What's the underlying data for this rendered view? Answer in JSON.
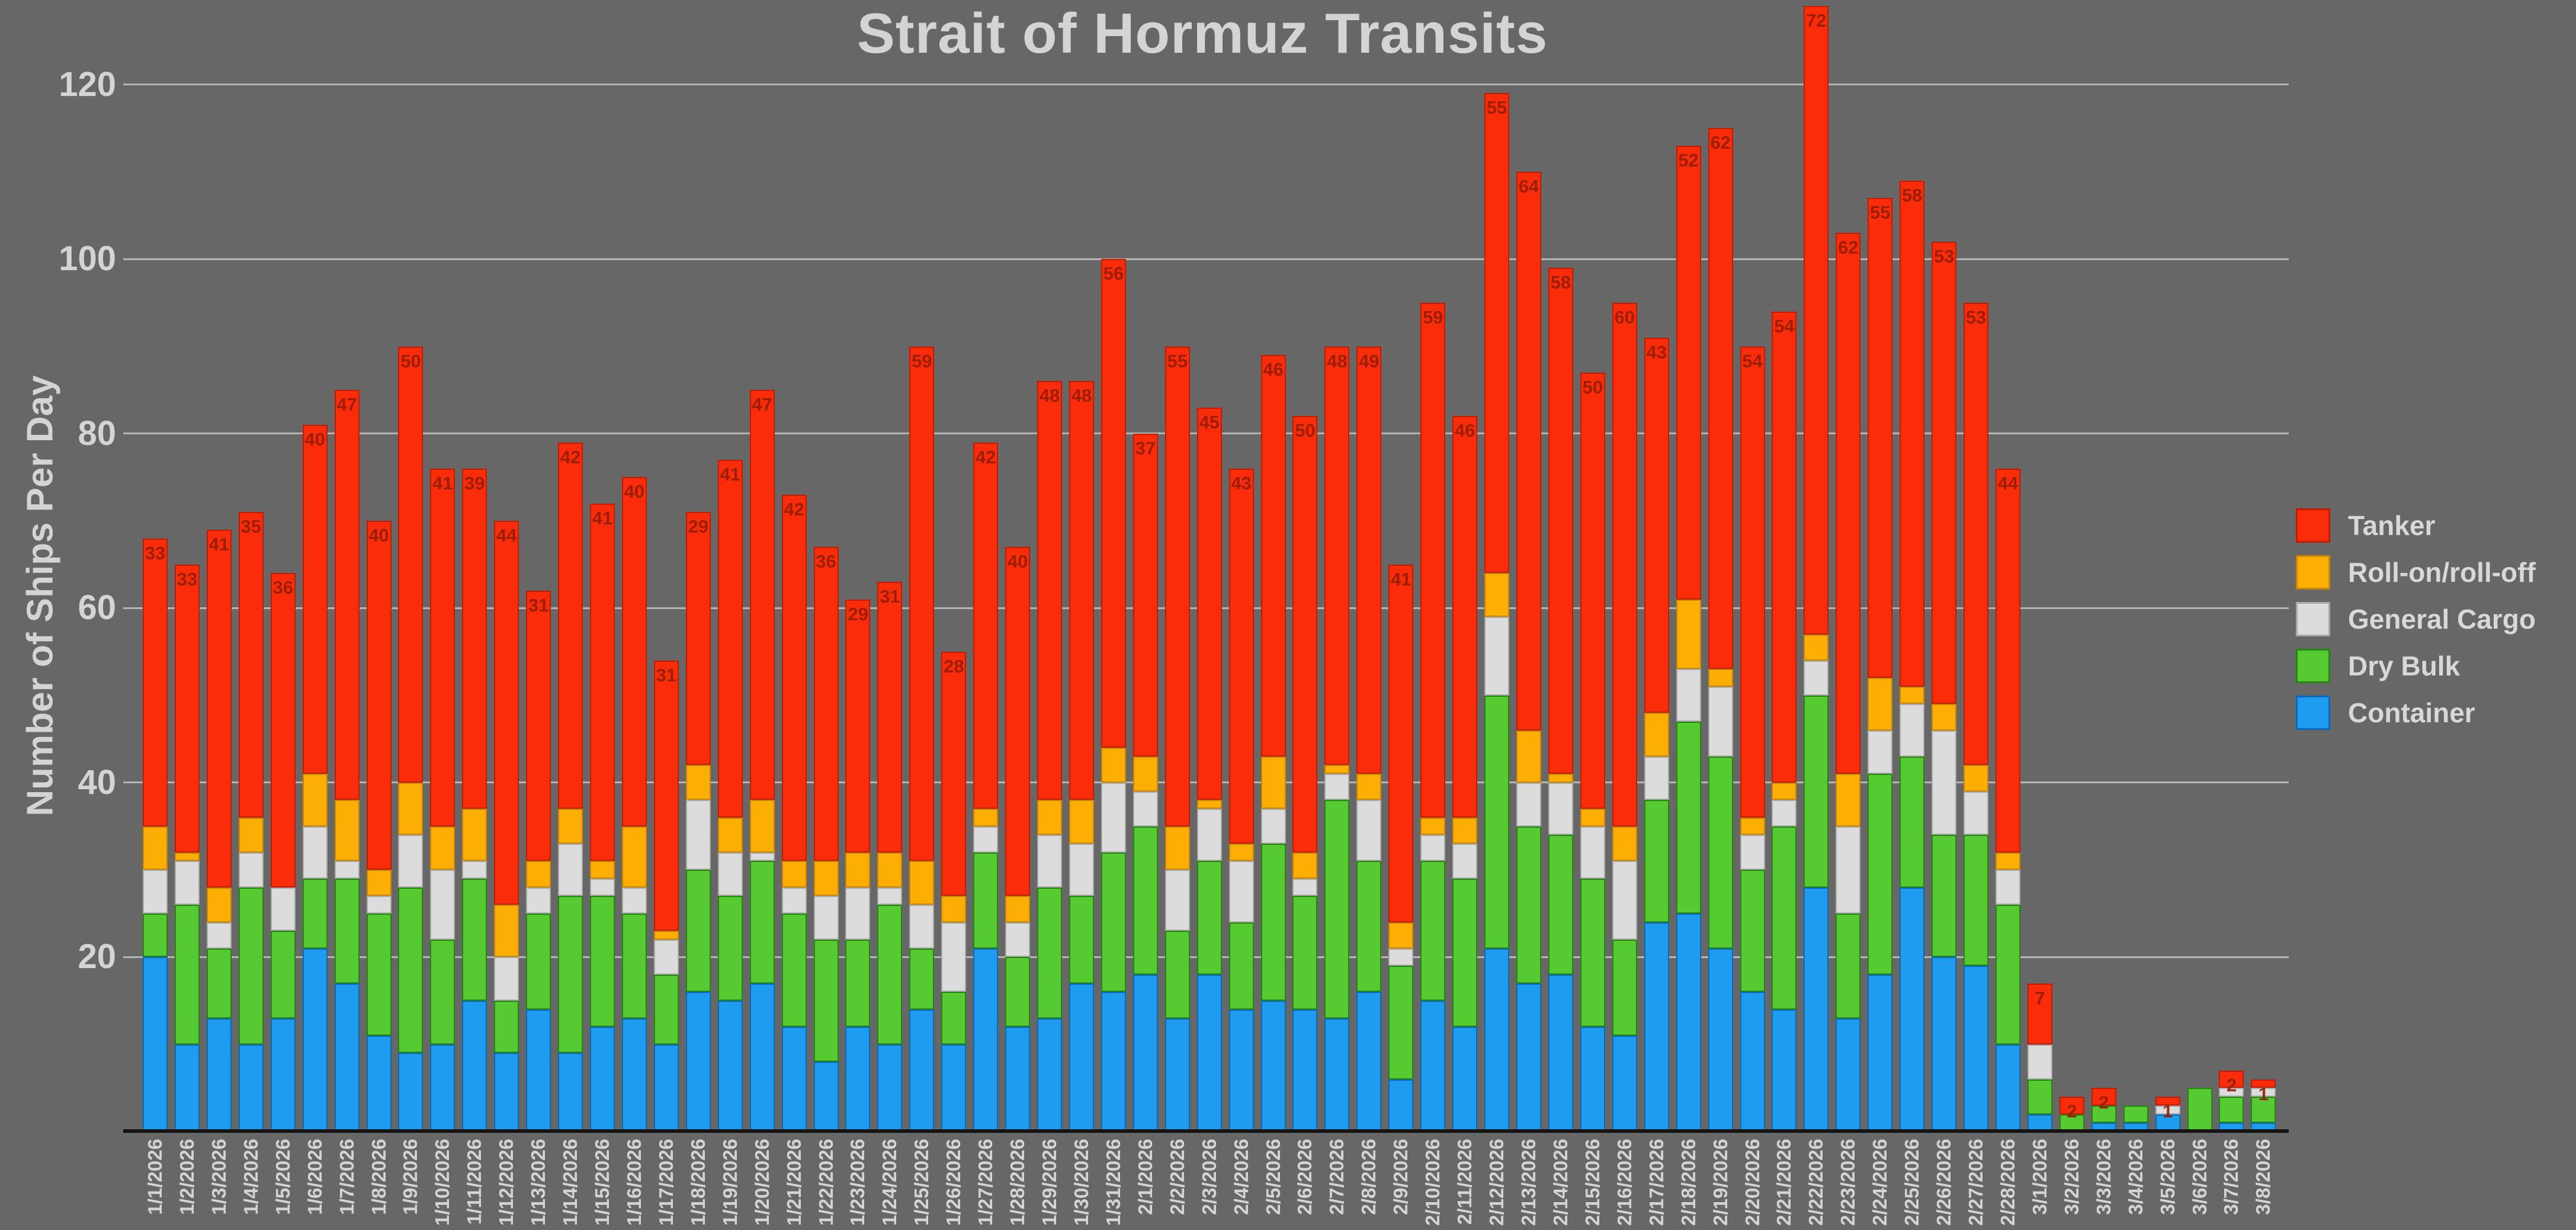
{
  "chart_data": {
    "type": "bar",
    "stacked": true,
    "title": "Strait of Hormuz Transits",
    "ylabel": "Number of Ships Per Day",
    "xlabel": "",
    "ylim": [
      0,
      130
    ],
    "yticks": [
      20,
      40,
      60,
      80,
      100,
      120
    ],
    "grid": true,
    "legend_position": "right",
    "value_labels_series": "Tanker",
    "value_label_color": "#941e03",
    "background_color": "#676767",
    "categories": [
      "1/1/2026",
      "1/2/2026",
      "1/3/2026",
      "1/4/2026",
      "1/5/2026",
      "1/6/2026",
      "1/7/2026",
      "1/8/2026",
      "1/9/2026",
      "1/10/2026",
      "1/11/2026",
      "1/12/2026",
      "1/13/2026",
      "1/14/2026",
      "1/15/2026",
      "1/16/2026",
      "1/17/2026",
      "1/18/2026",
      "1/19/2026",
      "1/20/2026",
      "1/21/2026",
      "1/22/2026",
      "1/23/2026",
      "1/24/2026",
      "1/25/2026",
      "1/26/2026",
      "1/27/2026",
      "1/28/2026",
      "1/29/2026",
      "1/30/2026",
      "1/31/2026",
      "2/1/2026",
      "2/2/2026",
      "2/3/2026",
      "2/4/2026",
      "2/5/2026",
      "2/6/2026",
      "2/7/2026",
      "2/8/2026",
      "2/9/2026",
      "2/10/2026",
      "2/11/2026",
      "2/12/2026",
      "2/13/2026",
      "2/14/2026",
      "2/15/2026",
      "2/16/2026",
      "2/17/2026",
      "2/18/2026",
      "2/19/2026",
      "2/20/2026",
      "2/21/2026",
      "2/22/2026",
      "2/23/2026",
      "2/24/2026",
      "2/25/2026",
      "2/26/2026",
      "2/27/2026",
      "2/28/2026",
      "3/1/2026",
      "3/2/2026",
      "3/3/2026",
      "3/4/2026",
      "3/5/2026",
      "3/6/2026",
      "3/7/2026",
      "3/8/2026"
    ],
    "series": [
      {
        "name": "Container",
        "color": "#1e9df0",
        "border_color": "#0b69ba",
        "values": [
          20,
          10,
          13,
          10,
          13,
          21,
          17,
          11,
          9,
          10,
          15,
          9,
          14,
          9,
          12,
          13,
          10,
          16,
          15,
          17,
          12,
          8,
          12,
          10,
          14,
          10,
          21,
          12,
          13,
          17,
          16,
          18,
          13,
          18,
          14,
          15,
          14,
          13,
          16,
          6,
          15,
          12,
          21,
          17,
          18,
          12,
          11,
          24,
          25,
          21,
          16,
          14,
          28,
          13,
          18,
          28,
          20,
          19,
          10,
          2,
          0,
          1,
          1,
          2,
          0,
          1,
          1
        ]
      },
      {
        "name": "Dry Bulk",
        "color": "#55cb31",
        "border_color": "#25850e",
        "values": [
          5,
          16,
          8,
          18,
          10,
          8,
          12,
          14,
          19,
          12,
          14,
          6,
          11,
          18,
          15,
          12,
          8,
          14,
          12,
          14,
          13,
          14,
          10,
          16,
          7,
          6,
          11,
          8,
          15,
          10,
          16,
          17,
          10,
          13,
          10,
          18,
          13,
          25,
          15,
          13,
          16,
          17,
          29,
          18,
          16,
          17,
          11,
          14,
          22,
          22,
          14,
          21,
          22,
          12,
          23,
          15,
          14,
          15,
          16,
          4,
          2,
          2,
          2,
          0,
          5,
          3,
          3
        ]
      },
      {
        "name": "General Cargo",
        "color": "#dcdcdc",
        "border_color": "#a9a9a9",
        "values": [
          5,
          5,
          3,
          4,
          5,
          6,
          2,
          2,
          6,
          8,
          2,
          5,
          3,
          6,
          2,
          3,
          4,
          8,
          5,
          1,
          3,
          5,
          6,
          2,
          5,
          8,
          3,
          4,
          6,
          6,
          8,
          4,
          7,
          6,
          7,
          4,
          2,
          3,
          7,
          2,
          3,
          4,
          9,
          5,
          6,
          6,
          9,
          5,
          6,
          8,
          4,
          3,
          4,
          10,
          5,
          6,
          12,
          5,
          4,
          4,
          0,
          0,
          0,
          1,
          0,
          1,
          1
        ]
      },
      {
        "name": "Roll-on/roll-off",
        "color": "#fcae04",
        "border_color": "#c98603",
        "values": [
          5,
          1,
          4,
          4,
          0,
          6,
          7,
          3,
          6,
          5,
          6,
          6,
          3,
          4,
          2,
          7,
          1,
          4,
          4,
          6,
          3,
          4,
          4,
          4,
          5,
          3,
          2,
          3,
          4,
          5,
          4,
          4,
          5,
          1,
          2,
          6,
          3,
          1,
          3,
          3,
          2,
          3,
          5,
          6,
          1,
          2,
          4,
          5,
          8,
          2,
          2,
          2,
          3,
          6,
          6,
          2,
          3,
          3,
          2,
          0,
          0,
          0,
          0,
          0,
          0,
          0,
          0
        ]
      },
      {
        "name": "Tanker",
        "color": "#fb2c0a",
        "border_color": "#bf1d02",
        "values": [
          33,
          33,
          41,
          35,
          36,
          40,
          47,
          40,
          50,
          41,
          39,
          44,
          31,
          42,
          41,
          40,
          31,
          29,
          41,
          47,
          42,
          36,
          29,
          31,
          59,
          28,
          42,
          40,
          48,
          48,
          56,
          37,
          55,
          45,
          43,
          46,
          50,
          48,
          49,
          41,
          59,
          46,
          55,
          64,
          58,
          50,
          60,
          43,
          52,
          62,
          54,
          54,
          72,
          62,
          55,
          58,
          53,
          53,
          44,
          7,
          2,
          2,
          0,
          1,
          0,
          2,
          1
        ]
      }
    ]
  },
  "legend": {
    "items": [
      {
        "label": "Tanker",
        "color": "#fb2c0a",
        "border_color": "#bf1d02"
      },
      {
        "label": "Roll-on/roll-off",
        "color": "#fcae04",
        "border_color": "#c98603"
      },
      {
        "label": "General Cargo",
        "color": "#dcdcdc",
        "border_color": "#a9a9a9"
      },
      {
        "label": "Dry Bulk",
        "color": "#55cb31",
        "border_color": "#25850e"
      },
      {
        "label": "Container",
        "color": "#1e9df0",
        "border_color": "#0b69ba"
      }
    ]
  }
}
